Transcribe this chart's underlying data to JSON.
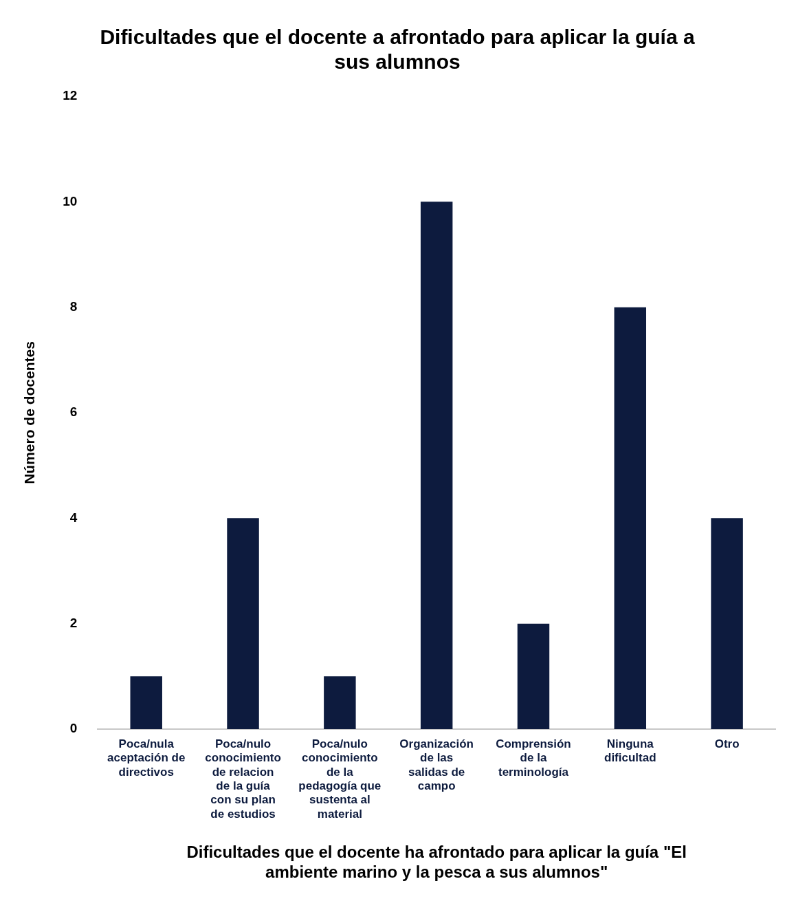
{
  "chart_data": {
    "type": "bar",
    "title": "Dificultades que el docente a afrontado para aplicar la guía a sus alumnos",
    "xlabel": "Dificultades que el docente ha afrontado para aplicar la guía \"El ambiente marino y la pesca a sus alumnos\"",
    "ylabel": "Número de docentes",
    "categories": [
      "Poca/nula aceptación de directivos",
      "Poca/nulo conocimiento de relacion de la guía con su plan de estudios",
      "Poca/nulo conocimiento de la pedagogía que sustenta al material",
      "Organización de las salidas de campo",
      "Comprensión de la terminología",
      "Ninguna dificultad",
      "Otro"
    ],
    "values": [
      1,
      4,
      1,
      10,
      2,
      8,
      4
    ],
    "color": "#0d1b3e",
    "ylim": [
      0,
      12
    ],
    "yticks": [
      0,
      2,
      4,
      6,
      8,
      10,
      12
    ],
    "grid": false,
    "legend": false
  }
}
